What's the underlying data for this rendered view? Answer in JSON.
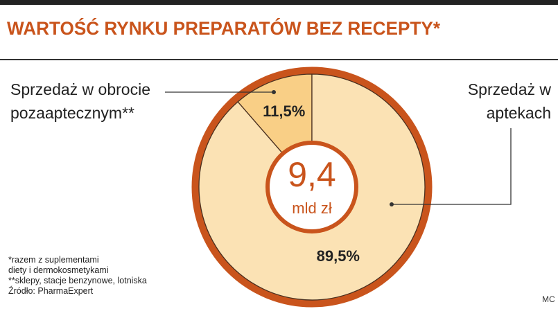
{
  "chart_data": {
    "type": "donut",
    "title": "WARTOŚĆ RYNKU PREPARATÓW BEZ RECEPTY*",
    "categories": [
      "Sprzedaż w obrocie pozaaptecznym**",
      "Sprzedaż w aptekach"
    ],
    "values": [
      11.5,
      89.5
    ],
    "value_labels": [
      "11,5%",
      "89,5%"
    ],
    "colors": [
      "#f9cf86",
      "#fbe2b4"
    ],
    "ring_color": "#c9541c",
    "center_value": "9,4",
    "center_unit": "mld zł",
    "footnotes": [
      "*razem z suplementami",
      "diety i dermokosmetykami",
      "**sklepy, stacje benzynowe, lotniska",
      "Źródło: PharmaExpert"
    ],
    "credit": "MC"
  }
}
